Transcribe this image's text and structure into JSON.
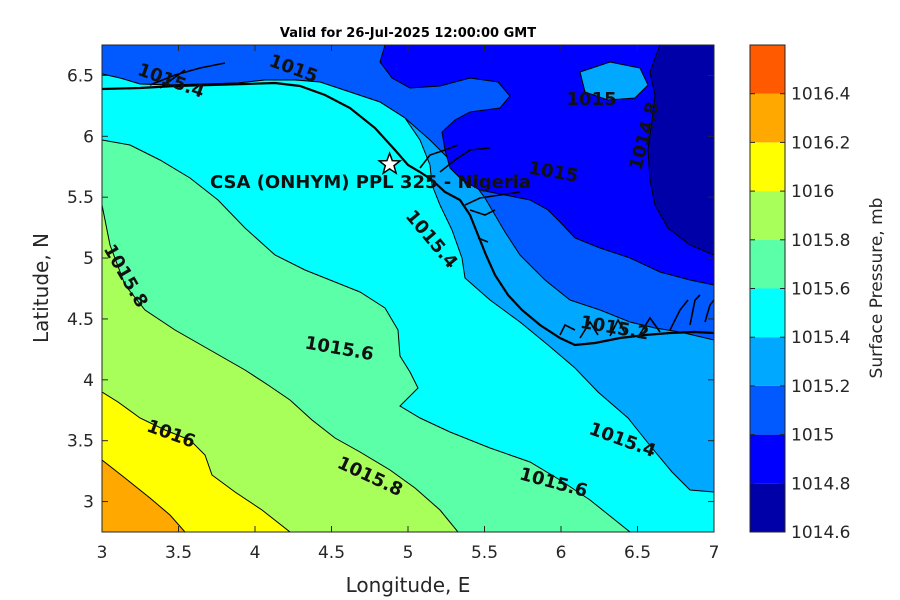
{
  "chart_data": {
    "type": "contour",
    "title": "Valid for 26-Jul-2025 12:00:00 GMT",
    "xlabel": "Longitude, E",
    "ylabel": "Latitude, N",
    "xlim": [
      3,
      7
    ],
    "ylim": [
      2.75,
      6.75
    ],
    "xticks": [
      "3",
      "3.5",
      "4",
      "4.5",
      "5",
      "5.5",
      "6",
      "6.5",
      "7"
    ],
    "yticks": [
      "3",
      "3.5",
      "4",
      "4.5",
      "5",
      "5.5",
      "6",
      "6.5"
    ],
    "colorbar": {
      "label": "Surface Pressure, mb",
      "ticks": [
        "1014.6",
        "1014.8",
        "1015",
        "1015.2",
        "1015.4",
        "1015.6",
        "1015.8",
        "1016",
        "1016.2",
        "1016.4"
      ],
      "levels": [
        {
          "from": 1014.6,
          "to": 1014.8,
          "color": "#0000a8"
        },
        {
          "from": 1014.8,
          "to": 1015.0,
          "color": "#0000ff"
        },
        {
          "from": 1015.0,
          "to": 1015.2,
          "color": "#005aff"
        },
        {
          "from": 1015.2,
          "to": 1015.4,
          "color": "#00a8ff"
        },
        {
          "from": 1015.4,
          "to": 1015.6,
          "color": "#00ffff"
        },
        {
          "from": 1015.6,
          "to": 1015.8,
          "color": "#5affa8"
        },
        {
          "from": 1015.8,
          "to": 1016.0,
          "color": "#a8ff5a"
        },
        {
          "from": 1016.0,
          "to": 1016.2,
          "color": "#ffff00"
        },
        {
          "from": 1016.2,
          "to": 1016.4,
          "color": "#ffa800"
        },
        {
          "from": 1016.4,
          "to": 1016.6,
          "color": "#ff5a00"
        }
      ]
    },
    "contour_labels": [
      {
        "text": "1015",
        "lon": 4.25,
        "lat": 6.55,
        "angle": 20
      },
      {
        "text": "1015.4",
        "lon": 3.45,
        "lat": 6.45,
        "angle": 20
      },
      {
        "text": "1015",
        "lon": 6.2,
        "lat": 6.3,
        "angle": 0
      },
      {
        "text": "1014.8",
        "lon": 6.55,
        "lat": 6.0,
        "angle": -75
      },
      {
        "text": "1015",
        "lon": 5.95,
        "lat": 5.7,
        "angle": 10
      },
      {
        "text": "1015.4",
        "lon": 5.15,
        "lat": 5.15,
        "angle": 50
      },
      {
        "text": "1015.8",
        "lon": 3.15,
        "lat": 4.85,
        "angle": 60
      },
      {
        "text": "1015.6",
        "lon": 4.55,
        "lat": 4.25,
        "angle": 10
      },
      {
        "text": "1015.2",
        "lon": 6.35,
        "lat": 4.42,
        "angle": 10
      },
      {
        "text": "1016",
        "lon": 3.45,
        "lat": 3.55,
        "angle": 20
      },
      {
        "text": "1015.8",
        "lon": 4.75,
        "lat": 3.2,
        "angle": 25
      },
      {
        "text": "1015.4",
        "lon": 6.4,
        "lat": 3.5,
        "angle": 20
      },
      {
        "text": "1015.6",
        "lon": 5.95,
        "lat": 3.15,
        "angle": 15
      }
    ],
    "station": {
      "label": "CSA (ONHYM) PPL 325 - Nigeria",
      "lon": 4.88,
      "lat": 5.77,
      "marker": "star"
    }
  }
}
